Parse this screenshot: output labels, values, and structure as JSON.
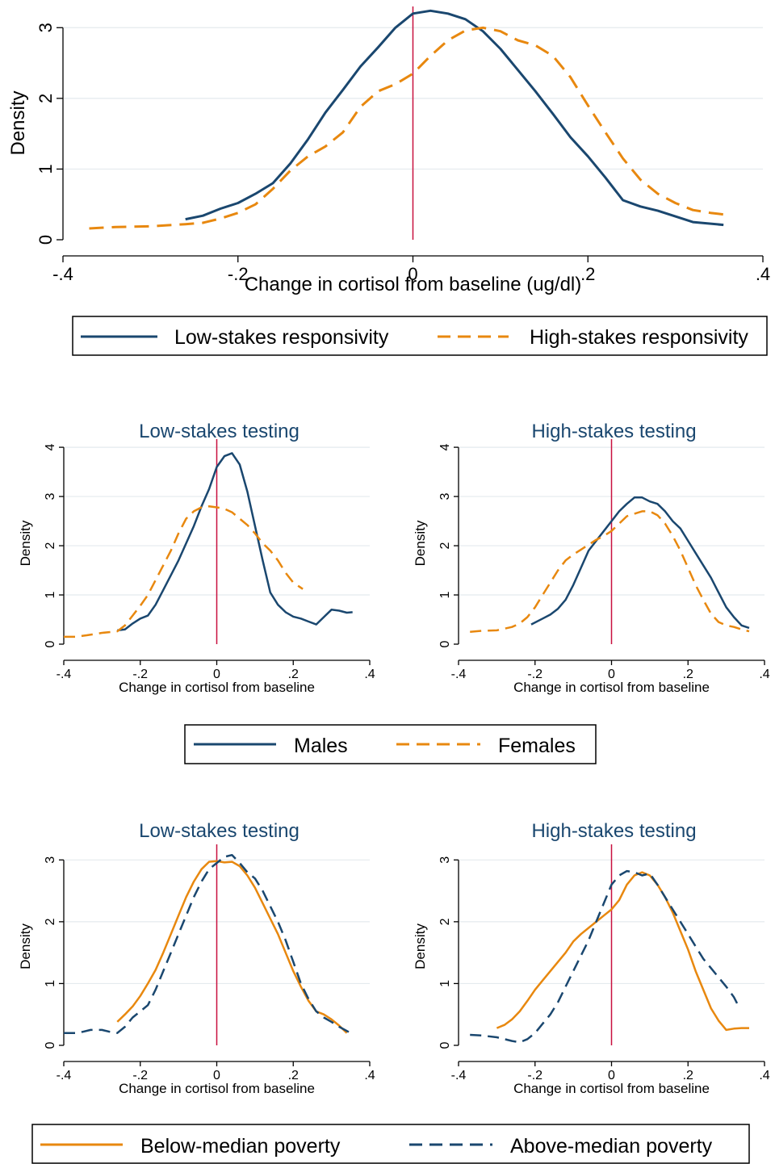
{
  "colors": {
    "navy": "#1a476f",
    "orange": "#e8880f",
    "crimson": "#c8103f",
    "grid": "#e4eaee",
    "axis": "#000000"
  },
  "legends": {
    "top": {
      "solid_label": "Low-stakes responsivity",
      "dashed_label": "High-stakes responsivity"
    },
    "middle": {
      "solid_label": "Males",
      "dashed_label": "Females"
    },
    "bottom": {
      "solid_label": "Below-median poverty",
      "dashed_label": "Above-median poverty"
    }
  },
  "chart_data": [
    {
      "type": "line",
      "title": "",
      "xlabel": "Change in cortisol from baseline (ug/dl)",
      "ylabel": "Density",
      "xlim": [
        -0.4,
        0.4
      ],
      "ylim": [
        0,
        3.3
      ],
      "xticks": [
        "-.4",
        "-.2",
        "0",
        ".2",
        ".4"
      ],
      "xtick_values": [
        -0.4,
        -0.2,
        0,
        0.2,
        0.4
      ],
      "yticks": [
        "0",
        "1",
        "2",
        "3"
      ],
      "ytick_values": [
        0,
        1,
        2,
        3
      ],
      "grid": true,
      "reference_x": 0,
      "series": [
        {
          "name": "Low-stakes responsivity",
          "style": "solid",
          "color": "navy",
          "x": [
            -0.26,
            -0.24,
            -0.22,
            -0.2,
            -0.18,
            -0.16,
            -0.14,
            -0.12,
            -0.1,
            -0.08,
            -0.06,
            -0.04,
            -0.02,
            0,
            0.02,
            0.04,
            0.06,
            0.08,
            0.1,
            0.12,
            0.14,
            0.16,
            0.18,
            0.2,
            0.22,
            0.24,
            0.26,
            0.28,
            0.3,
            0.32,
            0.355
          ],
          "y": [
            0.29,
            0.34,
            0.44,
            0.52,
            0.65,
            0.8,
            1.08,
            1.42,
            1.8,
            2.12,
            2.45,
            2.72,
            3.0,
            3.2,
            3.24,
            3.2,
            3.12,
            2.95,
            2.7,
            2.4,
            2.1,
            1.78,
            1.45,
            1.18,
            0.88,
            0.56,
            0.47,
            0.41,
            0.33,
            0.25,
            0.21
          ]
        },
        {
          "name": "High-stakes responsivity",
          "style": "dashed",
          "color": "orange",
          "x": [
            -0.37,
            -0.34,
            -0.3,
            -0.26,
            -0.24,
            -0.22,
            -0.2,
            -0.18,
            -0.16,
            -0.14,
            -0.12,
            -0.1,
            -0.08,
            -0.06,
            -0.04,
            -0.02,
            0,
            0.02,
            0.04,
            0.06,
            0.08,
            0.1,
            0.12,
            0.14,
            0.16,
            0.18,
            0.2,
            0.22,
            0.24,
            0.26,
            0.28,
            0.3,
            0.32,
            0.34,
            0.36
          ],
          "y": [
            0.16,
            0.18,
            0.19,
            0.22,
            0.24,
            0.3,
            0.38,
            0.5,
            0.72,
            0.98,
            1.18,
            1.32,
            1.52,
            1.88,
            2.1,
            2.2,
            2.35,
            2.6,
            2.82,
            2.96,
            3.0,
            2.95,
            2.82,
            2.75,
            2.6,
            2.3,
            1.9,
            1.52,
            1.15,
            0.85,
            0.65,
            0.52,
            0.42,
            0.38,
            0.35
          ]
        }
      ]
    },
    {
      "type": "line",
      "title": "Low-stakes testing",
      "xlabel": "Change in cortisol from baseline",
      "ylabel": "Density",
      "xlim": [
        -0.4,
        0.4
      ],
      "ylim": [
        0,
        4.1
      ],
      "xticks": [
        "-.4",
        "-.2",
        "0",
        ".2",
        ".4"
      ],
      "xtick_values": [
        -0.4,
        -0.2,
        0,
        0.2,
        0.4
      ],
      "yticks": [
        "0",
        "1",
        "2",
        "3",
        "4"
      ],
      "ytick_values": [
        0,
        1,
        2,
        3,
        4
      ],
      "grid": true,
      "reference_x": 0,
      "series": [
        {
          "name": "Males",
          "style": "solid",
          "color": "navy",
          "x": [
            -0.26,
            -0.24,
            -0.22,
            -0.2,
            -0.18,
            -0.16,
            -0.14,
            -0.12,
            -0.1,
            -0.08,
            -0.06,
            -0.04,
            -0.02,
            0,
            0.02,
            0.04,
            0.06,
            0.08,
            0.1,
            0.12,
            0.14,
            0.16,
            0.18,
            0.2,
            0.22,
            0.24,
            0.26,
            0.28,
            0.3,
            0.32,
            0.34,
            0.355
          ],
          "y": [
            0.28,
            0.3,
            0.42,
            0.52,
            0.58,
            0.8,
            1.1,
            1.4,
            1.7,
            2.05,
            2.4,
            2.8,
            3.15,
            3.6,
            3.82,
            3.88,
            3.65,
            3.1,
            2.4,
            1.7,
            1.05,
            0.8,
            0.65,
            0.56,
            0.52,
            0.46,
            0.4,
            0.55,
            0.7,
            0.68,
            0.64,
            0.65
          ]
        },
        {
          "name": "Females",
          "style": "dashed",
          "color": "orange",
          "x": [
            -0.4,
            -0.37,
            -0.34,
            -0.3,
            -0.26,
            -0.24,
            -0.22,
            -0.2,
            -0.18,
            -0.16,
            -0.14,
            -0.12,
            -0.1,
            -0.08,
            -0.06,
            -0.04,
            -0.02,
            0,
            0.02,
            0.04,
            0.06,
            0.08,
            0.1,
            0.12,
            0.14,
            0.16,
            0.18,
            0.2,
            0.225
          ],
          "y": [
            0.15,
            0.15,
            0.18,
            0.23,
            0.26,
            0.38,
            0.58,
            0.78,
            1.0,
            1.3,
            1.6,
            1.9,
            2.25,
            2.55,
            2.7,
            2.78,
            2.8,
            2.78,
            2.75,
            2.68,
            2.55,
            2.42,
            2.25,
            2.05,
            1.9,
            1.7,
            1.45,
            1.25,
            1.12
          ]
        }
      ]
    },
    {
      "type": "line",
      "title": "High-stakes testing",
      "xlabel": "Change in cortisol from baseline",
      "ylabel": "Density",
      "xlim": [
        -0.4,
        0.4
      ],
      "ylim": [
        0,
        4.1
      ],
      "xticks": [
        "-.4",
        "-.2",
        "0",
        ".2",
        ".4"
      ],
      "xtick_values": [
        -0.4,
        -0.2,
        0,
        0.2,
        0.4
      ],
      "yticks": [
        "0",
        "1",
        "2",
        "3",
        "4"
      ],
      "ytick_values": [
        0,
        1,
        2,
        3,
        4
      ],
      "grid": true,
      "reference_x": 0,
      "series": [
        {
          "name": "Males",
          "style": "solid",
          "color": "navy",
          "x": [
            -0.21,
            -0.18,
            -0.16,
            -0.14,
            -0.12,
            -0.1,
            -0.08,
            -0.06,
            -0.04,
            -0.02,
            0,
            0.02,
            0.04,
            0.06,
            0.08,
            0.1,
            0.12,
            0.14,
            0.16,
            0.18,
            0.2,
            0.22,
            0.24,
            0.26,
            0.28,
            0.3,
            0.32,
            0.34,
            0.36
          ],
          "y": [
            0.4,
            0.52,
            0.6,
            0.72,
            0.9,
            1.2,
            1.55,
            1.9,
            2.1,
            2.3,
            2.5,
            2.7,
            2.85,
            2.98,
            2.98,
            2.9,
            2.85,
            2.7,
            2.5,
            2.35,
            2.1,
            1.85,
            1.6,
            1.35,
            1.05,
            0.75,
            0.55,
            0.38,
            0.33
          ]
        },
        {
          "name": "Females",
          "style": "dashed",
          "color": "orange",
          "x": [
            -0.37,
            -0.34,
            -0.3,
            -0.26,
            -0.24,
            -0.22,
            -0.2,
            -0.18,
            -0.16,
            -0.14,
            -0.12,
            -0.1,
            -0.08,
            -0.06,
            -0.04,
            -0.02,
            0,
            0.02,
            0.04,
            0.06,
            0.08,
            0.1,
            0.12,
            0.14,
            0.16,
            0.18,
            0.2,
            0.22,
            0.24,
            0.26,
            0.28,
            0.3,
            0.32,
            0.34,
            0.36
          ],
          "y": [
            0.25,
            0.27,
            0.28,
            0.35,
            0.42,
            0.55,
            0.75,
            1.0,
            1.25,
            1.5,
            1.7,
            1.82,
            1.92,
            2.02,
            2.12,
            2.2,
            2.3,
            2.45,
            2.6,
            2.65,
            2.7,
            2.7,
            2.62,
            2.45,
            2.2,
            1.9,
            1.55,
            1.2,
            0.9,
            0.62,
            0.45,
            0.38,
            0.35,
            0.3,
            0.26
          ]
        }
      ]
    },
    {
      "type": "line",
      "title": "Low-stakes testing",
      "xlabel": "Change in cortisol from baseline",
      "ylabel": "Density",
      "xlim": [
        -0.4,
        0.4
      ],
      "ylim": [
        0,
        3.2
      ],
      "xticks": [
        "-.4",
        "-.2",
        "0",
        ".2",
        ".4"
      ],
      "xtick_values": [
        -0.4,
        -0.2,
        0,
        0.2,
        0.4
      ],
      "yticks": [
        "0",
        "1",
        "2",
        "3"
      ],
      "ytick_values": [
        0,
        1,
        2,
        3
      ],
      "grid": true,
      "reference_x": 0,
      "series": [
        {
          "name": "Below-median poverty",
          "style": "solid",
          "color": "orange",
          "x": [
            -0.26,
            -0.24,
            -0.22,
            -0.2,
            -0.18,
            -0.16,
            -0.14,
            -0.12,
            -0.1,
            -0.08,
            -0.06,
            -0.04,
            -0.02,
            0,
            0.02,
            0.04,
            0.06,
            0.08,
            0.1,
            0.12,
            0.14,
            0.16,
            0.18,
            0.2,
            0.22,
            0.24,
            0.26,
            0.28,
            0.3,
            0.32,
            0.34
          ],
          "y": [
            0.38,
            0.5,
            0.63,
            0.8,
            1.0,
            1.22,
            1.5,
            1.8,
            2.1,
            2.4,
            2.65,
            2.85,
            2.97,
            2.98,
            2.96,
            2.97,
            2.9,
            2.75,
            2.55,
            2.3,
            2.05,
            1.8,
            1.5,
            1.2,
            0.95,
            0.72,
            0.55,
            0.5,
            0.42,
            0.32,
            0.2
          ]
        },
        {
          "name": "Above-median poverty",
          "style": "dashed",
          "color": "navy",
          "x": [
            -0.4,
            -0.37,
            -0.35,
            -0.33,
            -0.3,
            -0.28,
            -0.26,
            -0.24,
            -0.22,
            -0.2,
            -0.18,
            -0.16,
            -0.14,
            -0.12,
            -0.1,
            -0.08,
            -0.06,
            -0.04,
            -0.02,
            0,
            0.02,
            0.04,
            0.06,
            0.08,
            0.1,
            0.12,
            0.14,
            0.16,
            0.18,
            0.2,
            0.22,
            0.24,
            0.26,
            0.28,
            0.3,
            0.32,
            0.35
          ],
          "y": [
            0.2,
            0.2,
            0.22,
            0.25,
            0.25,
            0.22,
            0.2,
            0.3,
            0.45,
            0.55,
            0.65,
            0.9,
            1.2,
            1.5,
            1.8,
            2.1,
            2.4,
            2.65,
            2.85,
            2.95,
            3.05,
            3.08,
            2.95,
            2.8,
            2.7,
            2.5,
            2.25,
            2.0,
            1.7,
            1.35,
            1.0,
            0.75,
            0.55,
            0.45,
            0.38,
            0.3,
            0.2
          ]
        }
      ]
    },
    {
      "type": "line",
      "title": "High-stakes testing",
      "xlabel": "Change in cortisol from baseline",
      "ylabel": "Density",
      "xlim": [
        -0.4,
        0.4
      ],
      "ylim": [
        0,
        3.2
      ],
      "xticks": [
        "-.4",
        "-.2",
        "0",
        ".2",
        ".4"
      ],
      "xtick_values": [
        -0.4,
        -0.2,
        0,
        0.2,
        0.4
      ],
      "yticks": [
        "0",
        "1",
        "2",
        "3"
      ],
      "ytick_values": [
        0,
        1,
        2,
        3
      ],
      "grid": true,
      "reference_x": 0,
      "series": [
        {
          "name": "Below-median poverty",
          "style": "solid",
          "color": "orange",
          "x": [
            -0.3,
            -0.28,
            -0.26,
            -0.24,
            -0.22,
            -0.2,
            -0.18,
            -0.16,
            -0.14,
            -0.12,
            -0.1,
            -0.08,
            -0.06,
            -0.04,
            -0.02,
            0,
            0.02,
            0.04,
            0.06,
            0.08,
            0.1,
            0.12,
            0.14,
            0.16,
            0.18,
            0.2,
            0.22,
            0.24,
            0.26,
            0.28,
            0.3,
            0.32,
            0.34,
            0.36
          ],
          "y": [
            0.28,
            0.33,
            0.42,
            0.55,
            0.72,
            0.9,
            1.05,
            1.2,
            1.35,
            1.5,
            1.68,
            1.8,
            1.9,
            2.0,
            2.1,
            2.2,
            2.35,
            2.6,
            2.75,
            2.8,
            2.75,
            2.6,
            2.4,
            2.15,
            1.85,
            1.55,
            1.2,
            0.9,
            0.6,
            0.4,
            0.25,
            0.27,
            0.28,
            0.28
          ]
        },
        {
          "name": "Above-median poverty",
          "style": "dashed",
          "color": "navy",
          "x": [
            -0.37,
            -0.34,
            -0.3,
            -0.28,
            -0.26,
            -0.24,
            -0.22,
            -0.2,
            -0.18,
            -0.16,
            -0.14,
            -0.12,
            -0.1,
            -0.08,
            -0.06,
            -0.04,
            -0.02,
            0,
            0.02,
            0.04,
            0.06,
            0.08,
            0.1,
            0.12,
            0.14,
            0.16,
            0.18,
            0.2,
            0.22,
            0.24,
            0.26,
            0.28,
            0.3,
            0.32,
            0.335
          ],
          "y": [
            0.17,
            0.16,
            0.13,
            0.1,
            0.07,
            0.05,
            0.1,
            0.2,
            0.35,
            0.5,
            0.7,
            0.95,
            1.2,
            1.45,
            1.7,
            2.0,
            2.3,
            2.6,
            2.75,
            2.82,
            2.8,
            2.75,
            2.78,
            2.6,
            2.4,
            2.2,
            2.0,
            1.8,
            1.6,
            1.4,
            1.25,
            1.1,
            0.95,
            0.78,
            0.6
          ]
        }
      ]
    }
  ]
}
